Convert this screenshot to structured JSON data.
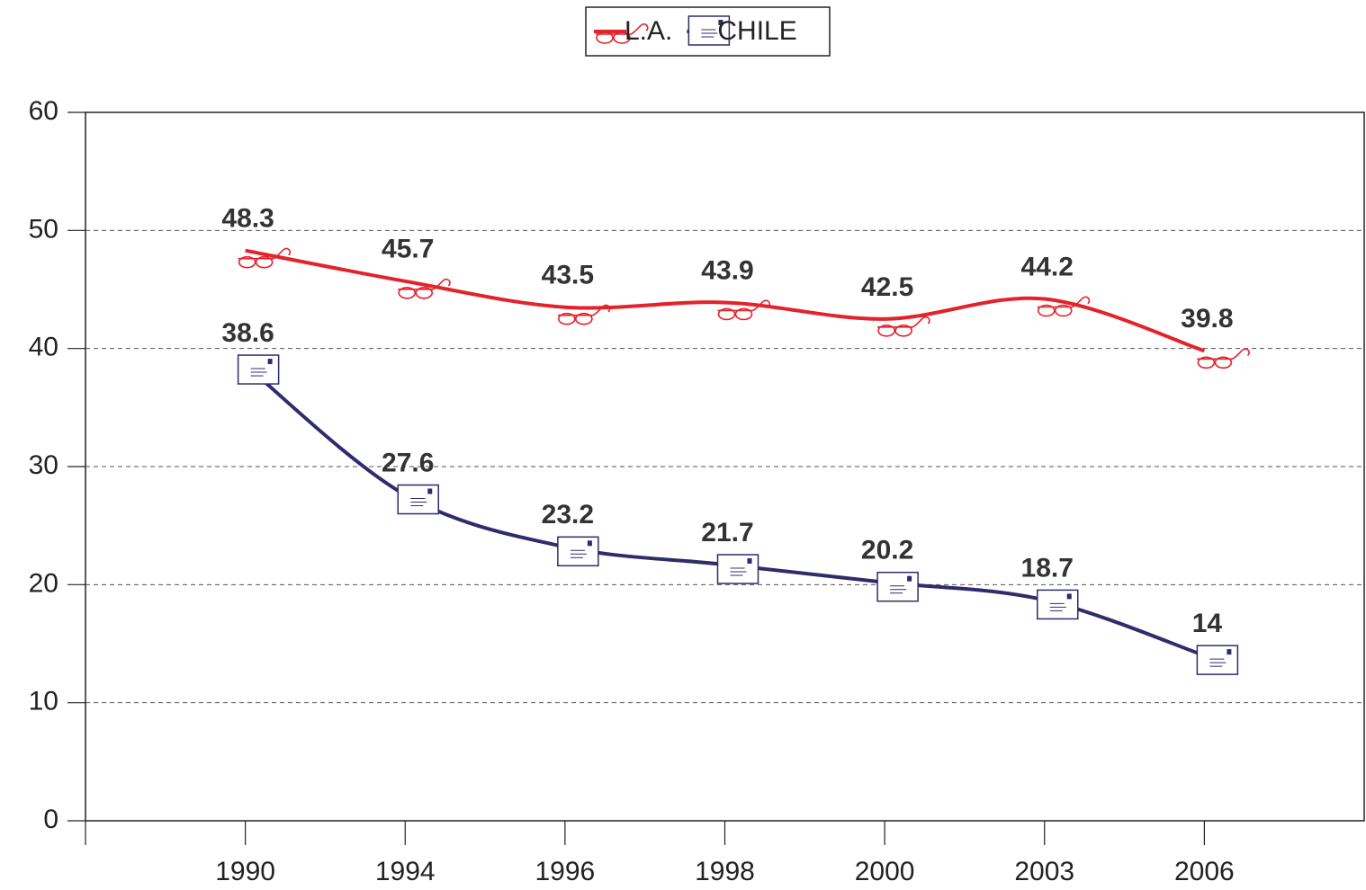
{
  "chart_data": {
    "type": "line",
    "categories": [
      "1990",
      "1994",
      "1996",
      "1998",
      "2000",
      "2003",
      "2006"
    ],
    "series": [
      {
        "name": "L.A.",
        "color": "#e3222b",
        "marker": "glasses",
        "values": [
          48.3,
          45.7,
          43.5,
          43.9,
          42.5,
          44.2,
          39.8
        ]
      },
      {
        "name": "CHILE",
        "color": "#2d2d6b",
        "marker": "envelope",
        "values": [
          38.6,
          27.6,
          23.2,
          21.7,
          20.2,
          18.7,
          14
        ]
      }
    ],
    "ylim": [
      0,
      60
    ],
    "yticks": [
      0,
      10,
      20,
      30,
      40,
      50,
      60
    ],
    "grid": true,
    "smooth": true,
    "legend": "top",
    "data_labels": true
  }
}
